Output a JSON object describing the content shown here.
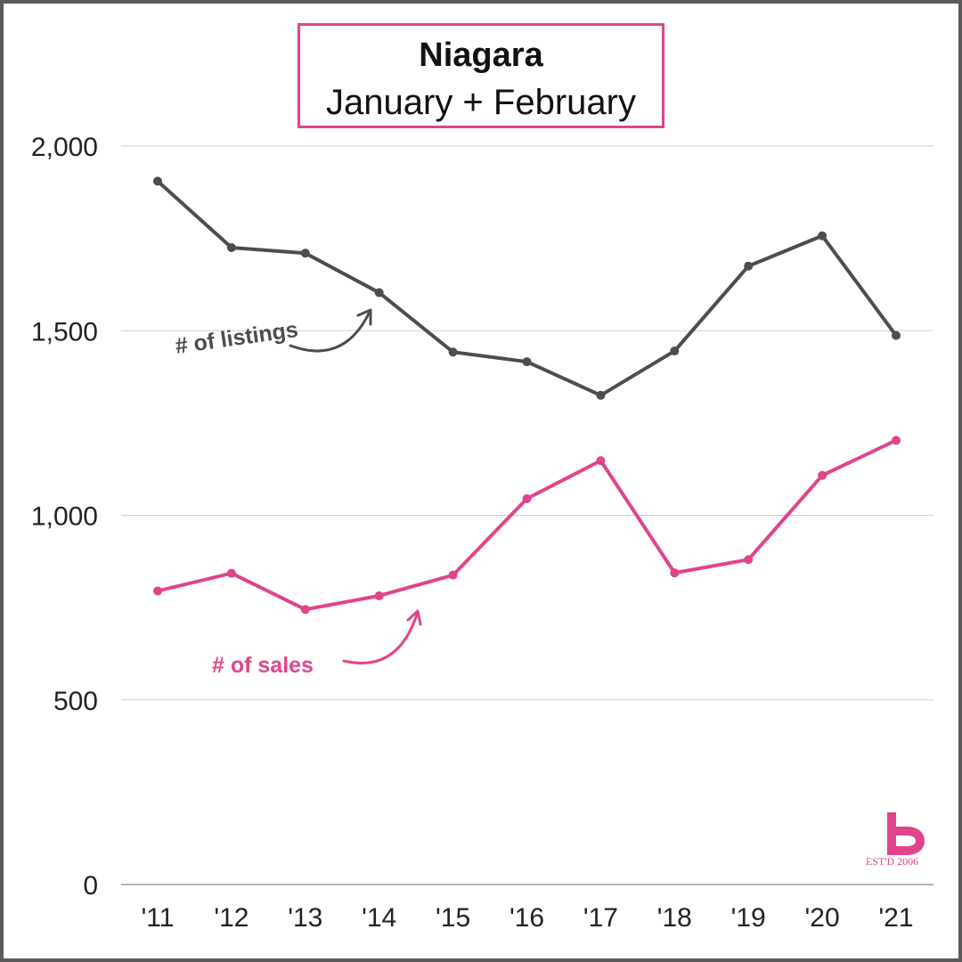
{
  "header": {
    "title": "Niagara",
    "subtitle": "January + February"
  },
  "logo": {
    "text": "EST'D 2006",
    "color": "#e0448c"
  },
  "chart_data": {
    "type": "line",
    "title": "Niagara",
    "subtitle": "January + February",
    "xlabel": "",
    "ylabel": "",
    "categories": [
      "'11",
      "'12",
      "'13",
      "'14",
      "'15",
      "'16",
      "'17",
      "'18",
      "'19",
      "'20",
      "'21"
    ],
    "y_ticks": [
      "0",
      "500",
      "1,000",
      "1,500",
      "2,000"
    ],
    "y_tick_values": [
      0,
      500,
      1000,
      1500,
      2000
    ],
    "ylim": [
      0,
      2000
    ],
    "grid": true,
    "series": [
      {
        "key": "listings",
        "name": "# of listings",
        "color": "#4d4d4d",
        "values": [
          1905,
          1725,
          1710,
          1603,
          1442,
          1416,
          1325,
          1445,
          1675,
          1757,
          1487
        ]
      },
      {
        "key": "sales",
        "name": "# of sales",
        "color": "#e0448c",
        "values": [
          795,
          843,
          745,
          782,
          838,
          1045,
          1148,
          844,
          880,
          1108,
          1203
        ]
      }
    ]
  }
}
